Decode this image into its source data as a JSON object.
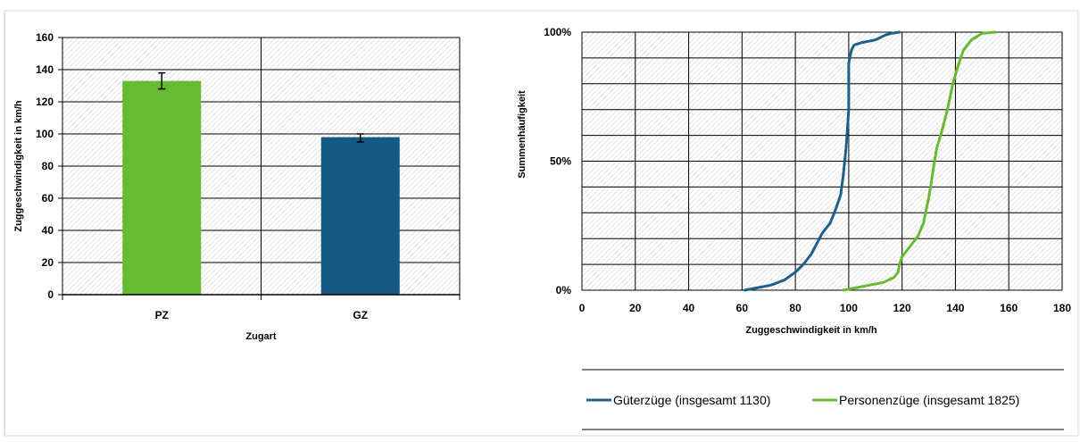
{
  "chart_data": [
    {
      "type": "bar",
      "title": "",
      "categories": [
        "PZ",
        "GZ"
      ],
      "values": [
        133,
        98
      ],
      "error_bars": [
        [
          128,
          138
        ],
        [
          95,
          100
        ]
      ],
      "colors": [
        "#66bb33",
        "#145a82"
      ],
      "xlabel": "Zugart",
      "ylabel": "Zuggeschwindigkeit  in km/h",
      "ylim": [
        0,
        160
      ],
      "yticks": [
        0,
        20,
        40,
        60,
        80,
        100,
        120,
        140,
        160
      ],
      "grid": true,
      "legend": "none"
    },
    {
      "type": "line",
      "title": "",
      "xlabel": "Zuggeschwindigkeit  in km/h",
      "ylabel": "Summenhäufigkeit",
      "xlim": [
        0,
        180
      ],
      "ylim": [
        0,
        100
      ],
      "xticks": [
        0,
        20,
        40,
        60,
        80,
        100,
        120,
        140,
        160,
        180
      ],
      "yticks": [
        0,
        50,
        100
      ],
      "ytick_labels": [
        "0%",
        "50%",
        "100%"
      ],
      "grid": true,
      "legend": "bottom",
      "series": [
        {
          "name": "Güterzüge (insgesamt 1130)",
          "color": "#1f5f8b",
          "x": [
            61,
            66,
            71,
            76,
            80,
            83,
            86,
            88,
            90,
            93,
            95,
            97,
            98,
            99,
            100,
            100,
            101,
            102,
            105,
            110,
            114,
            116,
            119
          ],
          "y": [
            0,
            1,
            2,
            4,
            7,
            10,
            14,
            18,
            22,
            26,
            31,
            37,
            45,
            55,
            70,
            88,
            93,
            95,
            96,
            97,
            99,
            99.5,
            100
          ]
        },
        {
          "name": "Personenzüge (insgesamt 1825)",
          "color": "#66bb33",
          "x": [
            98,
            103,
            108,
            113,
            117,
            118.5,
            119,
            120,
            123,
            126,
            128,
            129,
            130,
            131,
            132,
            133,
            135,
            137,
            139,
            141,
            143,
            146,
            150,
            155
          ],
          "y": [
            0,
            1,
            2,
            3,
            5,
            7,
            10,
            13,
            17,
            21,
            26,
            31,
            36,
            42,
            49,
            55,
            62,
            70,
            80,
            87,
            93,
            97,
            99.5,
            100
          ]
        }
      ]
    }
  ]
}
